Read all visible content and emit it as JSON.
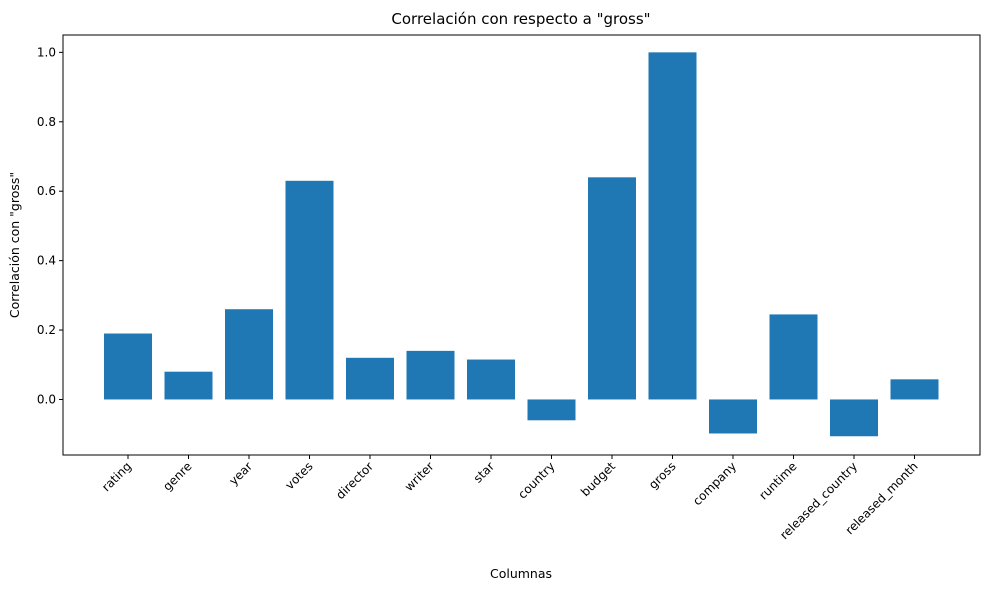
{
  "chart_data": {
    "type": "bar",
    "title": "Correlación con respecto a \"gross\"",
    "xlabel": "Columnas",
    "ylabel": "Correlación con \"gross\"",
    "categories": [
      "rating",
      "genre",
      "year",
      "votes",
      "director",
      "writer",
      "star",
      "country",
      "budget",
      "gross",
      "company",
      "runtime",
      "released_country",
      "released_month"
    ],
    "values": [
      0.19,
      0.08,
      0.26,
      0.63,
      0.12,
      0.14,
      0.115,
      -0.06,
      0.64,
      1.0,
      -0.098,
      0.245,
      -0.106,
      0.058
    ],
    "yticks": [
      0.0,
      0.2,
      0.4,
      0.6,
      0.8,
      1.0
    ],
    "ytick_labels": [
      "0.0",
      "0.2",
      "0.4",
      "0.6",
      "0.8",
      "1.0"
    ],
    "ylim": [
      -0.16,
      1.05
    ],
    "bar_color": "#1f77b4",
    "grid": false
  }
}
